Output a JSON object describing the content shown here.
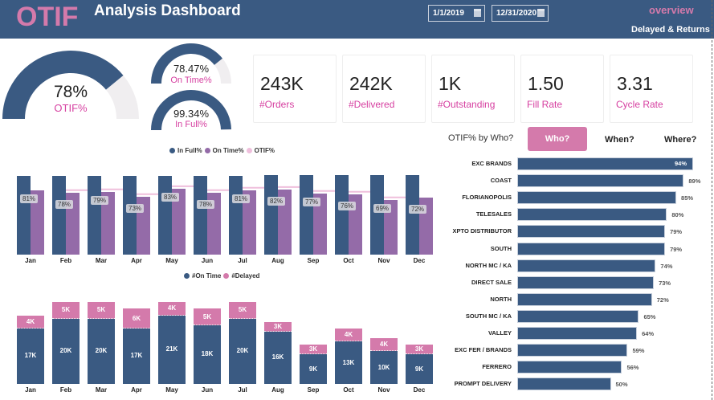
{
  "header": {
    "logo": "OTIF",
    "title": "Analysis Dashboard",
    "start_date": "1/1/2019",
    "end_date": "12/31/2020",
    "nav_overview": "overview",
    "nav_delayed": "Delayed & Returns"
  },
  "colors": {
    "header": "#3a5a82",
    "primary": "#3a5a82",
    "purple": "#946ba8",
    "pink": "#d47aab",
    "pink_text": "#d63fa0",
    "otif_line": "#efbfdc"
  },
  "gauges": {
    "otif": {
      "value": "78%",
      "label": "OTIF%",
      "fraction": 0.78
    },
    "on_time": {
      "value": "78.47%",
      "label": "On Time%",
      "fraction": 0.7847
    },
    "in_full": {
      "value": "99.34%",
      "label": "In Full%",
      "fraction": 0.9934
    }
  },
  "kpis": [
    {
      "value": "243K",
      "label": "#Orders"
    },
    {
      "value": "242K",
      "label": "#Delivered"
    },
    {
      "value": "1K",
      "label": "#Outstanding"
    },
    {
      "value": "1.50",
      "label": "Fill Rate"
    },
    {
      "value": "3.31",
      "label": "Cycle Rate"
    }
  ],
  "who_panel": {
    "title": "OTIF% by Who?",
    "tabs": [
      "Who?",
      "When?",
      "Where?"
    ],
    "active_tab": "Who?"
  },
  "chart_data": [
    {
      "type": "bar",
      "categories": [
        "Jan",
        "Feb",
        "Mar",
        "Apr",
        "May",
        "Jun",
        "Jul",
        "Aug",
        "Sep",
        "Oct",
        "Nov",
        "Dec"
      ],
      "legend": [
        "In Full%",
        "On Time%",
        "OTIF%"
      ],
      "legend_position": "top",
      "series": [
        {
          "name": "In Full%",
          "values": [
            99,
            99,
            99,
            99,
            99,
            99,
            99,
            99.5,
            99.5,
            99.5,
            99.5,
            99.5
          ]
        },
        {
          "name": "On Time%",
          "values": [
            81,
            78,
            79,
            73,
            83,
            78,
            81,
            82,
            77,
            76,
            69,
            72
          ]
        },
        {
          "name": "OTIF%",
          "type": "line",
          "values": [
            81,
            78,
            79,
            73,
            83,
            78,
            81,
            82,
            77,
            76,
            69,
            72
          ]
        }
      ],
      "data_labels": [
        "81%",
        "78%",
        "79%",
        "73%",
        "83%",
        "78%",
        "81%",
        "82%",
        "77%",
        "76%",
        "69%",
        "72%"
      ],
      "grid": false
    },
    {
      "type": "bar",
      "stacked": true,
      "categories": [
        "Jan",
        "Feb",
        "Mar",
        "Apr",
        "May",
        "Jun",
        "Jul",
        "Aug",
        "Sep",
        "Oct",
        "Nov",
        "Dec"
      ],
      "legend": [
        "#On Time",
        "#Delayed"
      ],
      "legend_position": "top",
      "series": [
        {
          "name": "#On Time",
          "values": [
            17,
            20,
            20,
            17,
            21,
            18,
            20,
            16,
            9,
            13,
            10,
            9
          ],
          "labels": [
            "17K",
            "20K",
            "20K",
            "17K",
            "21K",
            "18K",
            "20K",
            "16K",
            "9K",
            "13K",
            "10K",
            "9K"
          ]
        },
        {
          "name": "#Delayed",
          "values": [
            4,
            5,
            5,
            6,
            4,
            5,
            5,
            3,
            3,
            4,
            4,
            3
          ],
          "labels": [
            "4K",
            "5K",
            "5K",
            "6K",
            "4K",
            "5K",
            "5K",
            "3K",
            "3K",
            "4K",
            "4K",
            "3K"
          ]
        }
      ],
      "grid": false
    },
    {
      "type": "bar",
      "orientation": "horizontal",
      "title": "OTIF% by Who?",
      "categories": [
        "EXC BRANDS",
        "COAST",
        "FLORIANOPOLIS",
        "TELESALES",
        "XPTO DISTRIBUTOR",
        "SOUTH",
        "NORTH MC / KA",
        "DIRECT SALE",
        "NORTH",
        "SOUTH MC / KA",
        "VALLEY",
        "EXC FER / BRANDS",
        "FERRERO",
        "PROMPT DELIVERY"
      ],
      "values": [
        94,
        89,
        85,
        80,
        79,
        79,
        74,
        73,
        72,
        65,
        64,
        59,
        56,
        50
      ],
      "labels": [
        "94%",
        "89%",
        "85%",
        "80%",
        "79%",
        "79%",
        "74%",
        "73%",
        "72%",
        "65%",
        "64%",
        "59%",
        "56%",
        "50%"
      ]
    }
  ]
}
